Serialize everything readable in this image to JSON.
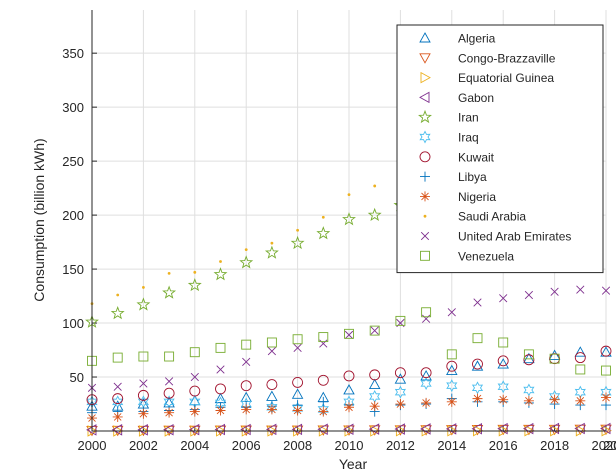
{
  "chart_data": {
    "type": "scatter",
    "title": "",
    "xlabel": "Year",
    "ylabel": "Consumption (billion kWh)",
    "xlim": [
      2000,
      2021
    ],
    "ylim": [
      0,
      390
    ],
    "xticks": [
      2000,
      2002,
      2004,
      2006,
      2008,
      2010,
      2012,
      2014,
      2016,
      2018,
      2020
    ],
    "xtick_labels": [
      "2000",
      "2002",
      "2004",
      "2006",
      "2008",
      "2010",
      "2012",
      "2014",
      "2016",
      "2018",
      "2020"
    ],
    "yticks": [
      50,
      100,
      150,
      200,
      250,
      300,
      350
    ],
    "ytick_labels": [
      "50",
      "100",
      "150",
      "200",
      "250",
      "300",
      "350"
    ],
    "grid": true,
    "legend_position": "top-right",
    "x": [
      2000,
      2001,
      2002,
      2003,
      2004,
      2005,
      2006,
      2007,
      2008,
      2009,
      2010,
      2011,
      2012,
      2013,
      2014,
      2015,
      2016,
      2017,
      2018,
      2019,
      2020
    ],
    "series": [
      {
        "name": "Algeria",
        "marker": "triangle-up",
        "color": "#0072bd",
        "values": [
          23,
          23,
          25,
          26,
          28,
          30,
          31,
          32,
          34,
          31,
          38,
          43,
          48,
          51,
          56,
          60,
          62,
          67,
          70,
          73,
          73
        ]
      },
      {
        "name": "Congo-Brazzaville",
        "marker": "triangle-down",
        "color": "#d95319",
        "values": [
          0.5,
          0.6,
          0.6,
          0.7,
          0.7,
          0.8,
          0.8,
          0.9,
          0.9,
          1,
          1,
          1.1,
          1.1,
          1.2,
          1.3,
          1.4,
          1.5,
          1.5,
          1.6,
          1.7,
          1.7
        ]
      },
      {
        "name": "Equatorial Guinea",
        "marker": "triangle-right",
        "color": "#edb120",
        "values": [
          0.05,
          0.05,
          0.05,
          0.05,
          0.1,
          0.1,
          0.1,
          0.1,
          0.1,
          0.1,
          0.1,
          0.1,
          0.2,
          0.2,
          0.2,
          0.3,
          0.3,
          0.3,
          0.3,
          0.3,
          0.3
        ]
      },
      {
        "name": "Gabon",
        "marker": "triangle-left",
        "color": "#7e2f8e",
        "values": [
          1,
          1.1,
          1.1,
          1.2,
          1.3,
          1.4,
          1.4,
          1.5,
          1.5,
          1.6,
          1.6,
          1.7,
          1.8,
          1.9,
          2,
          2.1,
          2.2,
          2.2,
          2.3,
          2.3,
          2.3
        ]
      },
      {
        "name": "Iran",
        "marker": "pentagram",
        "color": "#77ac30",
        "values": [
          101,
          109,
          117,
          128,
          135,
          145,
          156,
          165,
          174,
          183,
          196,
          200,
          209,
          216,
          null,
          null,
          null,
          null,
          null,
          null,
          null
        ]
      },
      {
        "name": "Iraq",
        "marker": "hexagram",
        "color": "#4dbeee",
        "values": [
          27,
          27,
          27,
          27,
          27,
          26,
          25,
          22,
          21,
          20,
          27,
          32,
          36,
          44,
          42,
          40,
          41,
          38,
          32,
          36,
          36
        ]
      },
      {
        "name": "Kuwait",
        "marker": "circle",
        "color": "#a2142f",
        "values": [
          29,
          30,
          33,
          35,
          37,
          39,
          42,
          43,
          45,
          47,
          51,
          52,
          54,
          54,
          60,
          62,
          65,
          66,
          67,
          68,
          74
        ]
      },
      {
        "name": "Libya",
        "marker": "plus",
        "color": "#0072bd",
        "values": [
          17,
          18,
          18,
          19,
          20,
          22,
          22,
          23,
          24,
          27,
          24,
          18,
          24,
          25,
          30,
          27,
          27,
          26,
          25,
          24,
          24
        ]
      },
      {
        "name": "Nigeria",
        "marker": "asterisk",
        "color": "#d95319",
        "values": [
          12,
          13,
          16,
          17,
          18,
          19,
          20,
          20,
          19,
          18,
          22,
          23,
          25,
          26,
          27,
          30,
          29,
          28,
          29,
          28,
          31
        ]
      },
      {
        "name": "Saudi Arabia",
        "marker": "point",
        "color": "#edb120",
        "values": [
          118,
          126,
          133,
          146,
          147,
          157,
          168,
          174,
          186,
          198,
          219,
          227,
          266,
          283,
          null,
          null,
          null,
          null,
          null,
          null,
          null
        ]
      },
      {
        "name": "United Arab Emirates",
        "marker": "x",
        "color": "#7e2f8e",
        "values": [
          40,
          41,
          44,
          46,
          50,
          57,
          64,
          74,
          77,
          81,
          89,
          93,
          100,
          104,
          110,
          119,
          123,
          126,
          129,
          131,
          130
        ]
      },
      {
        "name": "Venezuela",
        "marker": "square",
        "color": "#77ac30",
        "values": [
          65,
          68,
          69,
          69,
          73,
          77,
          80,
          82,
          85,
          87,
          90,
          93,
          102,
          110,
          71,
          86,
          82,
          71,
          67,
          57,
          56
        ]
      }
    ],
    "extra_x_tick_label": "20"
  }
}
